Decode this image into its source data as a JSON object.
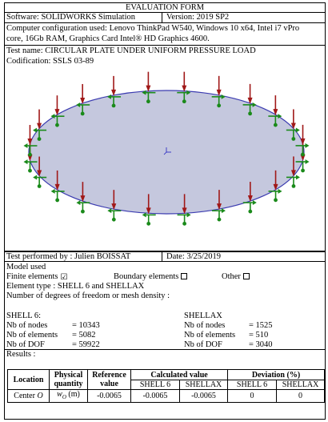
{
  "header": {
    "title": "EVALUATION FORM",
    "software": "Software: SOLIDWORKS Simulation",
    "version": "Version: 2019 SP2",
    "config_line1": "Computer configuration used: Lenovo ThinkPad W540, Windows 10 x64, Intel i7 vPro",
    "config_line2": "core, 16Gb RAM,  Graphics Card Intel® HD Graphics 4600.",
    "test_name": "Test name: CIRCULAR PLATE UNDER UNIFORM PRESSURE LOAD",
    "codification": "Codification: SSLS 03-89"
  },
  "figure": {
    "colors": {
      "plate_fill": "#c5c8de",
      "plate_edge": "#3b3bb0",
      "load": "#a01818",
      "support": "#1a8a1a"
    }
  },
  "info": {
    "performed_by": "Test performed by : Julien BOISSAT",
    "date": "Date: 3/25/2019",
    "model_used": "Model used",
    "finite_elements": "Finite elements",
    "finite_checked": "☑",
    "boundary_elements": "Boundary elements",
    "other": "Other",
    "element_type": "Element type : SHELL 6 and SHELLAX",
    "dof_label": "Number of degrees of freedom or mesh density :"
  },
  "mesh": {
    "shell6": {
      "title": "SHELL 6:",
      "rows": [
        {
          "label": "Nb of nodes",
          "value": "= 10343"
        },
        {
          "label": "Nb of elements",
          "value": "= 5082"
        },
        {
          "label": "Nb of DOF",
          "value": "= 59922"
        }
      ]
    },
    "shellax": {
      "title": "SHELLAX",
      "rows": [
        {
          "label": "Nb of nodes",
          "value": "= 1525"
        },
        {
          "label": "Nb of elements",
          "value": "= 510"
        },
        {
          "label": "Nb of DOF",
          "value": "= 3040"
        }
      ]
    }
  },
  "results": {
    "label": "Results :",
    "headers": {
      "location": "Location",
      "physical_line1": "Physical",
      "physical_line2": "quantity",
      "reference_line1": "Reference",
      "reference_line2": "value",
      "calculated": "Calculated value",
      "deviation": "Deviation (%)",
      "shell6": "SHELL 6",
      "shellax": "SHELLAX"
    },
    "row": {
      "location_text": "Center ",
      "location_symbol": "O",
      "quantity_symbol": "w",
      "quantity_sub": "O",
      "quantity_unit": " (m)",
      "reference": "-0.0065",
      "calc_shell6": "-0.0065",
      "calc_shellax": "-0.0065",
      "dev_shell6": "0",
      "dev_shellax": "0"
    }
  }
}
